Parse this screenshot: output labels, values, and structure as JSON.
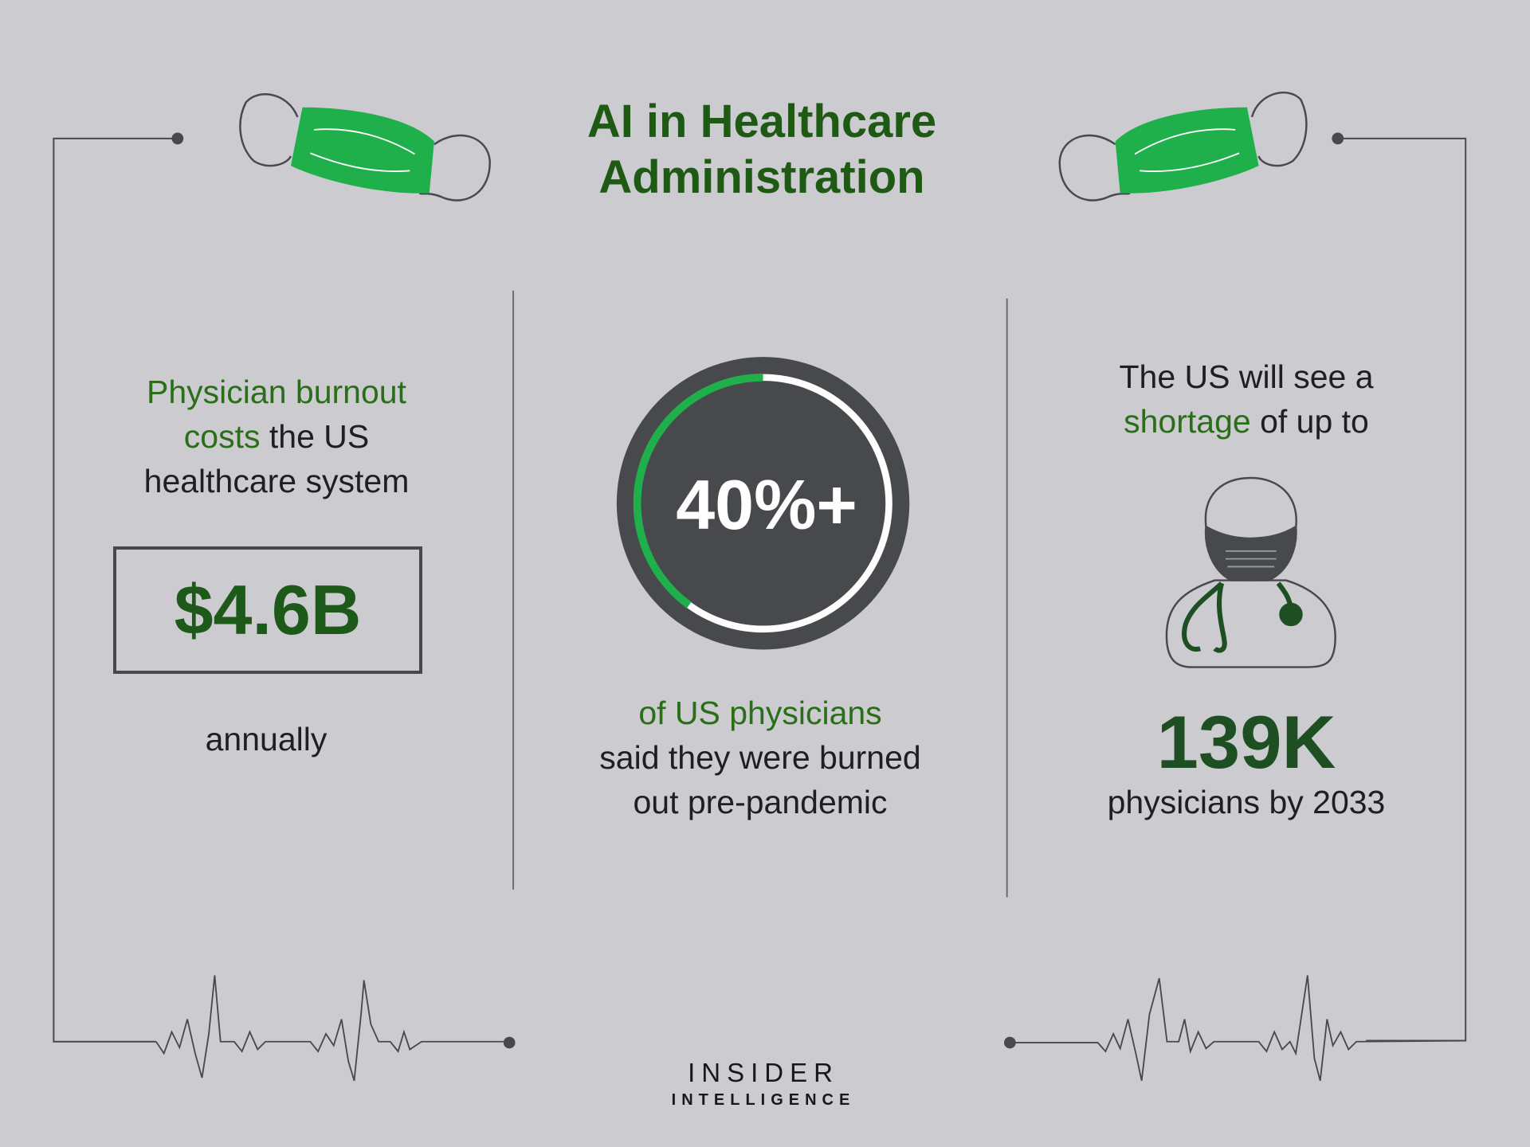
{
  "title": {
    "line1": "AI in Healthcare",
    "line2": "Administration"
  },
  "left": {
    "highlight1": "Physician burnout",
    "highlight2": "costs",
    "text2": " the US",
    "text3": "healthcare system",
    "value": "$4.6B",
    "after": "annually"
  },
  "middle": {
    "value": "40%+",
    "progress_percent": 40,
    "highlight": "of US physicians",
    "text2": "said they were burned",
    "text3": "out pre-pandemic"
  },
  "right": {
    "text1": "The US will see a",
    "highlight": "shortage",
    "text2": " of up to",
    "value": "139K",
    "after": "physicians by 2033"
  },
  "logo": {
    "line1": "INSIDER",
    "line2": "INTELLIGENCE"
  },
  "colors": {
    "accent_green": "#1fb04b",
    "title_green": "#1e5a14",
    "dark": "#48494d",
    "background": "#cbcbd0"
  }
}
